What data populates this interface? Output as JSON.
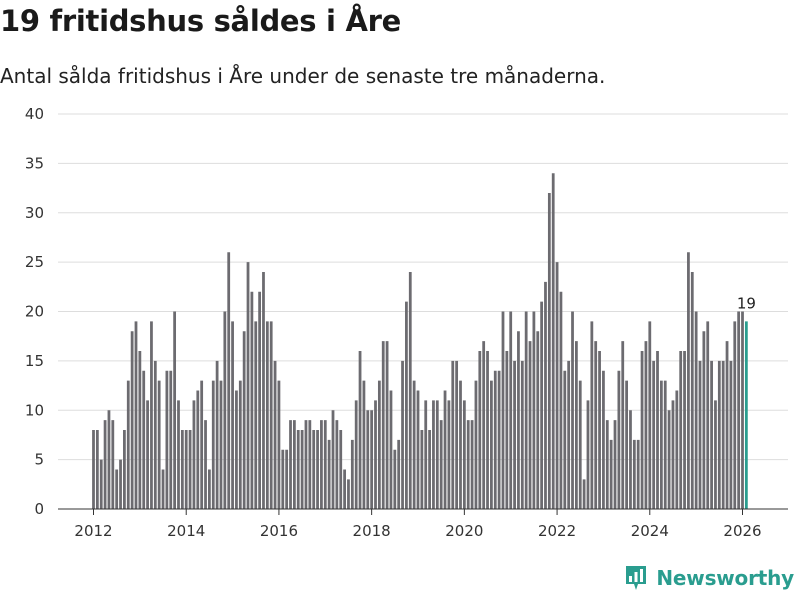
{
  "header": {
    "title": "19 fritidshus såldes i Åre",
    "subtitle": "Antal sålda fritidshus i Åre under de senaste tre månaderna."
  },
  "brand": {
    "name": "Newsworthy"
  },
  "colors": {
    "bar": "#6c6b70",
    "highlight": "#2a9d8f",
    "grid": "#dddddd",
    "brand": "#2a9d8f"
  },
  "chart_data": {
    "type": "bar",
    "title": "19 fritidshus såldes i Åre",
    "xlabel": "",
    "ylabel": "",
    "ylim": [
      0,
      40
    ],
    "y_ticks": [
      0,
      5,
      10,
      15,
      20,
      25,
      30,
      35,
      40
    ],
    "x_ticks": [
      2012,
      2014,
      2016,
      2018,
      2020,
      2022,
      2024,
      2026
    ],
    "start": "2012-01",
    "end": "2026-01",
    "frequency": "monthly",
    "values": [
      8,
      8,
      5,
      9,
      10,
      9,
      4,
      5,
      8,
      13,
      18,
      19,
      16,
      14,
      11,
      19,
      15,
      13,
      4,
      14,
      14,
      20,
      11,
      8,
      8,
      8,
      11,
      12,
      13,
      9,
      4,
      13,
      15,
      13,
      20,
      26,
      19,
      12,
      13,
      18,
      25,
      22,
      19,
      22,
      24,
      19,
      19,
      15,
      13,
      6,
      6,
      9,
      9,
      8,
      8,
      9,
      9,
      8,
      8,
      9,
      9,
      7,
      10,
      9,
      8,
      4,
      3,
      7,
      11,
      16,
      13,
      10,
      10,
      11,
      13,
      17,
      17,
      12,
      6,
      7,
      15,
      21,
      24,
      13,
      12,
      8,
      11,
      8,
      11,
      11,
      9,
      12,
      11,
      15,
      15,
      13,
      11,
      9,
      9,
      13,
      16,
      17,
      16,
      13,
      14,
      14,
      20,
      16,
      20,
      15,
      18,
      15,
      20,
      17,
      20,
      18,
      21,
      23,
      32,
      34,
      25,
      22,
      14,
      15,
      20,
      17,
      13,
      3,
      11,
      19,
      17,
      16,
      14,
      9,
      7,
      9,
      14,
      17,
      13,
      10,
      7,
      7,
      16,
      17,
      19,
      15,
      16,
      13,
      13,
      10,
      11,
      12,
      16,
      16,
      26,
      24,
      20,
      15,
      18,
      19,
      15,
      11,
      15,
      15,
      17,
      15,
      19,
      20,
      20,
      19
    ],
    "annotations": [
      {
        "label": "19",
        "target": "last"
      }
    ]
  }
}
